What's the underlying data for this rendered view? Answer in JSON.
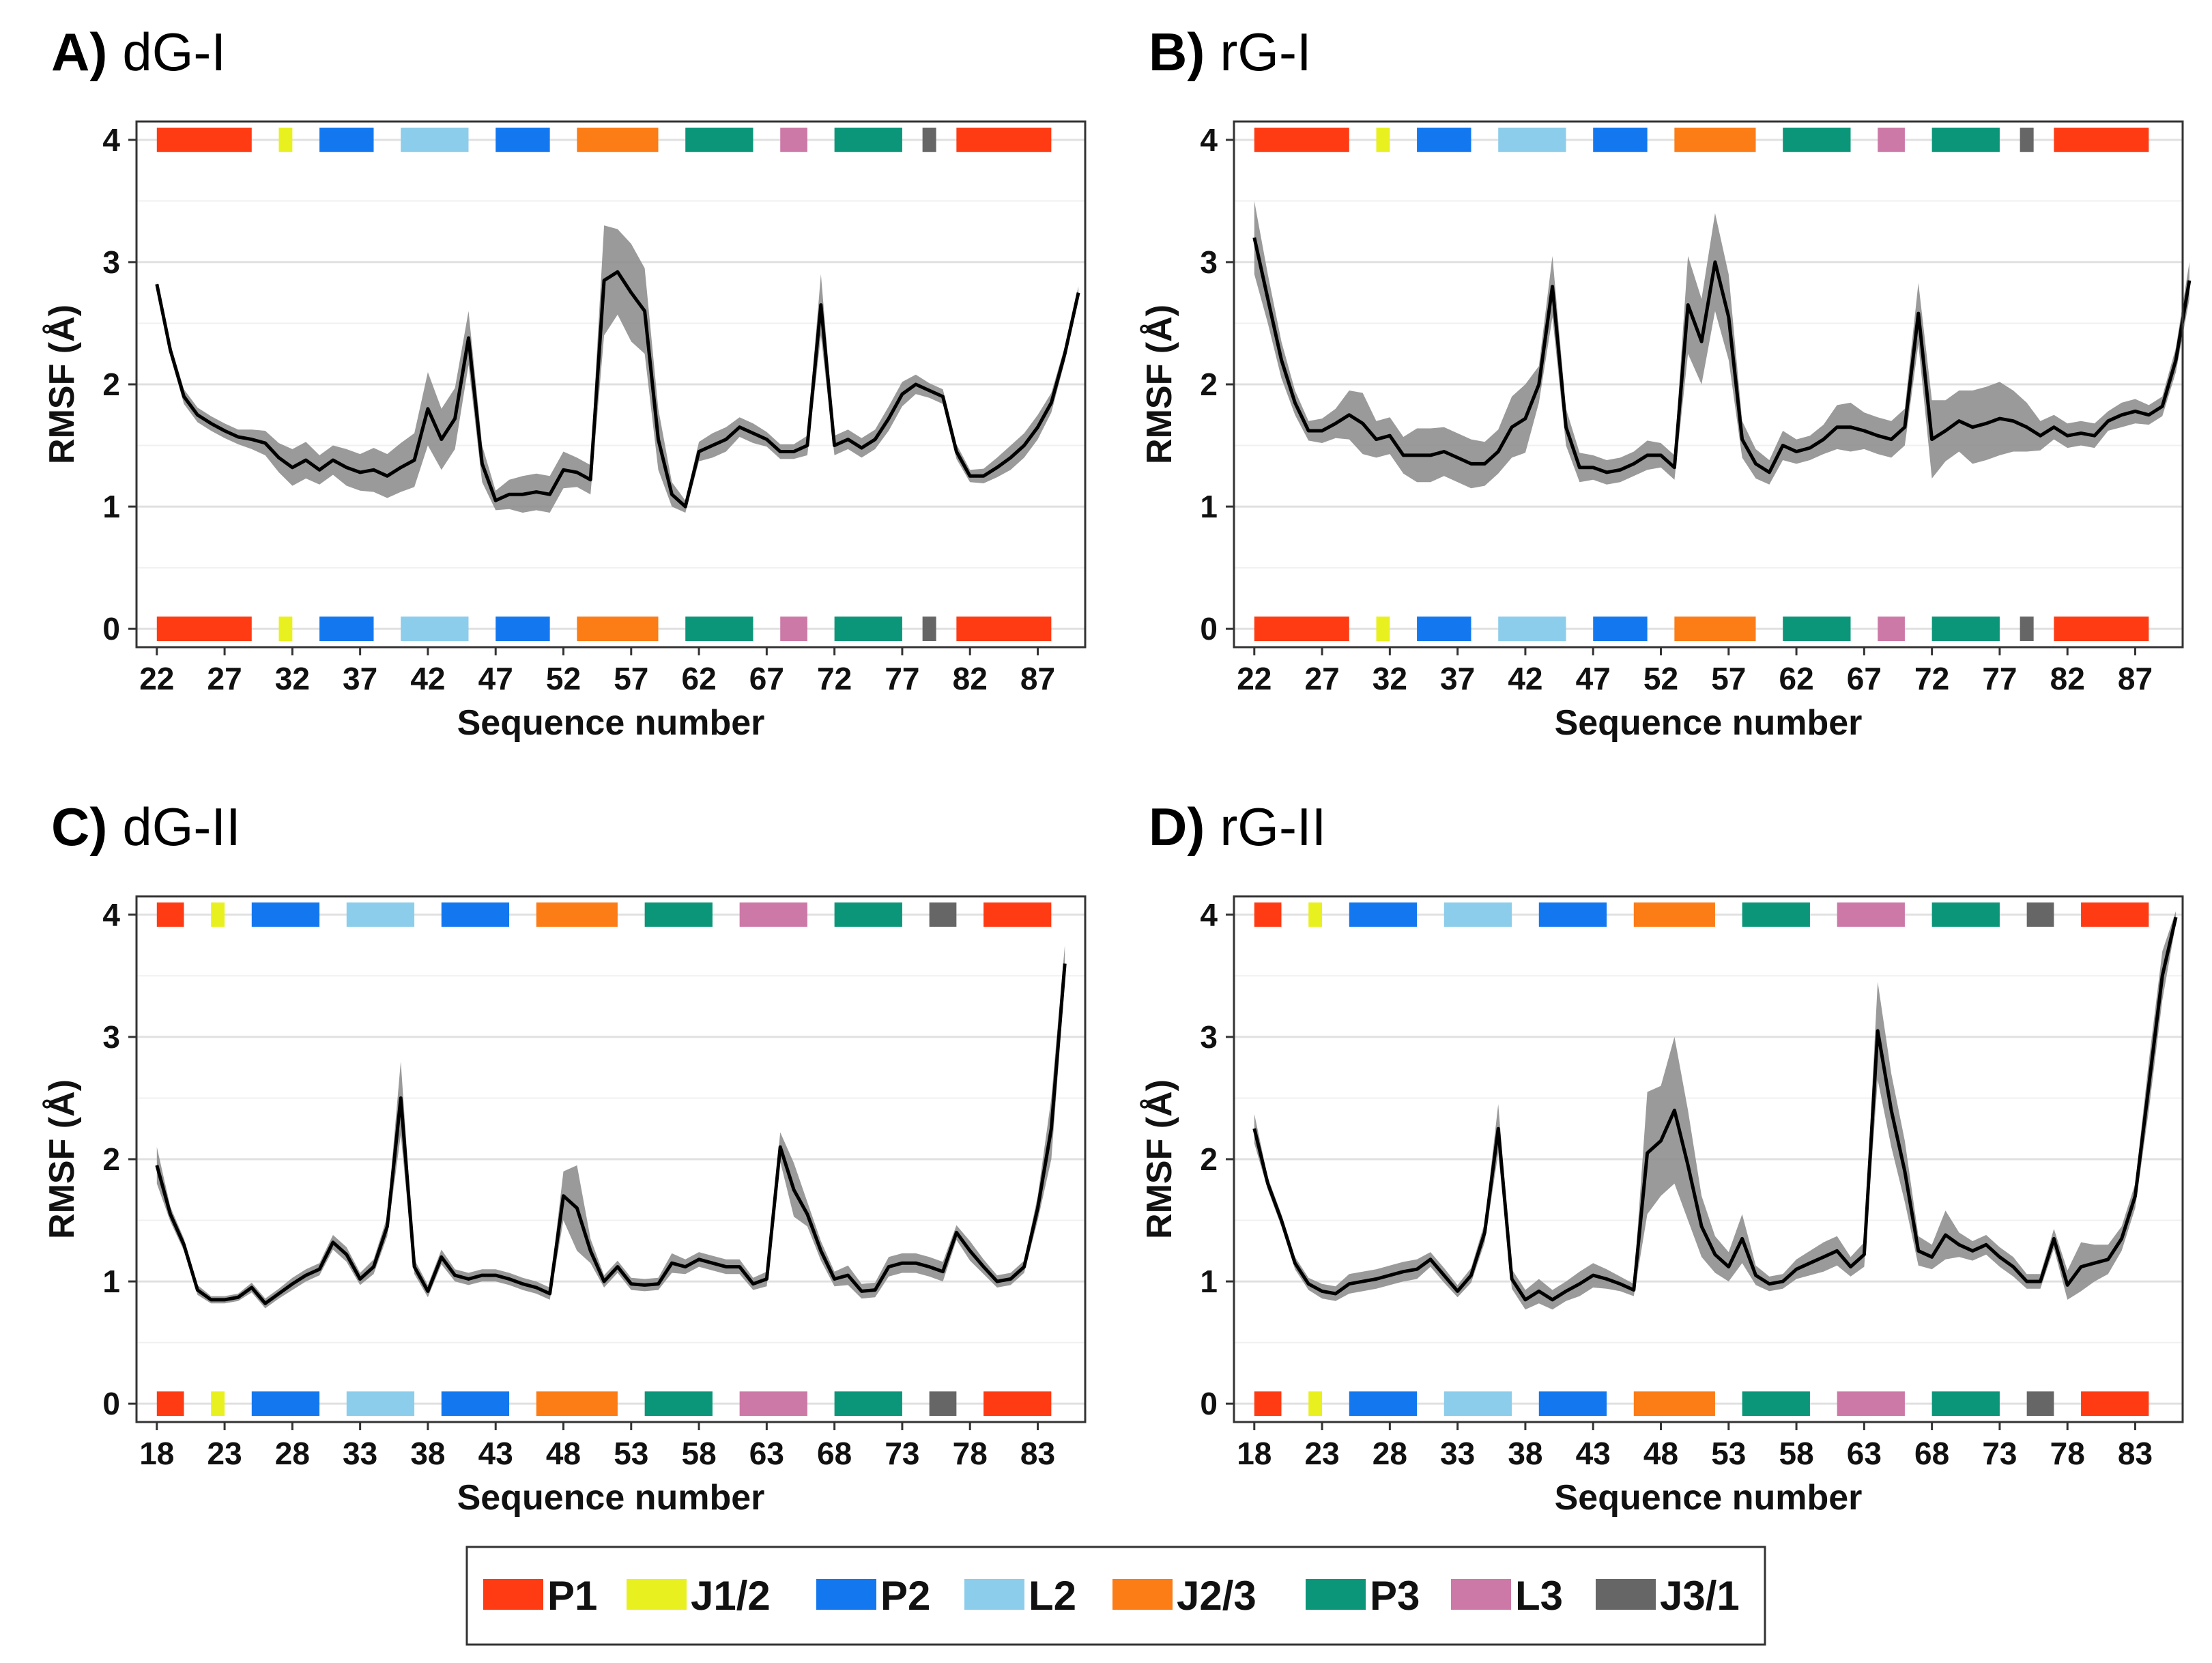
{
  "colors": {
    "P1": "#FF3B14",
    "J1/2": "#E9F020",
    "P2": "#1378F0",
    "L2": "#8CCDEB",
    "J2/3": "#FC7C16",
    "P3": "#0B967A",
    "L3": "#CC79A7",
    "J3/1": "#666666",
    "band": "#888888",
    "line": "#000000"
  },
  "legend": {
    "items": [
      {
        "key": "P1",
        "label": "P1"
      },
      {
        "key": "J1/2",
        "label": "J1/2"
      },
      {
        "key": "P2",
        "label": "P2"
      },
      {
        "key": "L2",
        "label": "L2"
      },
      {
        "key": "J2/3",
        "label": "J2/3"
      },
      {
        "key": "P3",
        "label": "P3"
      },
      {
        "key": "L3",
        "label": "L3"
      },
      {
        "key": "J3/1",
        "label": "J3/1"
      }
    ]
  },
  "chart_data": [
    {
      "id": "A",
      "type": "line",
      "panel_letter": "A)",
      "panel_name": "dG-I",
      "xlabel": "Sequence number",
      "ylabel": "RMSF (Å)",
      "xlim": [
        20.5,
        90.5
      ],
      "ylim": [
        -0.15,
        4.15
      ],
      "xticks": [
        22,
        27,
        32,
        37,
        42,
        47,
        52,
        57,
        62,
        67,
        72,
        77,
        82,
        87
      ],
      "yticks": [
        0,
        1,
        2,
        3,
        4
      ],
      "x_start": 22,
      "series": [
        {
          "name": "RMSF",
          "values": [
            2.82,
            2.28,
            1.9,
            1.75,
            1.68,
            1.62,
            1.57,
            1.55,
            1.52,
            1.4,
            1.32,
            1.38,
            1.3,
            1.38,
            1.32,
            1.28,
            1.3,
            1.25,
            1.32,
            1.38,
            1.8,
            1.55,
            1.72,
            2.38,
            1.35,
            1.05,
            1.1,
            1.1,
            1.12,
            1.1,
            1.3,
            1.28,
            1.22,
            2.85,
            2.92,
            2.75,
            2.6,
            1.55,
            1.1,
            1.0,
            1.45,
            1.5,
            1.55,
            1.65,
            1.6,
            1.55,
            1.45,
            1.45,
            1.5,
            2.65,
            1.5,
            1.55,
            1.48,
            1.55,
            1.72,
            1.92,
            2.0,
            1.95,
            1.9,
            1.45,
            1.25,
            1.25,
            1.32,
            1.4,
            1.5,
            1.65,
            1.85,
            2.25,
            2.75
          ],
          "spread": [
            0.02,
            0.05,
            0.06,
            0.06,
            0.06,
            0.06,
            0.06,
            0.08,
            0.1,
            0.12,
            0.15,
            0.15,
            0.12,
            0.12,
            0.15,
            0.15,
            0.18,
            0.18,
            0.2,
            0.22,
            0.3,
            0.25,
            0.25,
            0.22,
            0.15,
            0.08,
            0.12,
            0.15,
            0.15,
            0.15,
            0.15,
            0.12,
            0.12,
            0.45,
            0.35,
            0.4,
            0.35,
            0.25,
            0.1,
            0.05,
            0.08,
            0.1,
            0.1,
            0.08,
            0.08,
            0.06,
            0.06,
            0.06,
            0.08,
            0.25,
            0.08,
            0.08,
            0.08,
            0.08,
            0.1,
            0.1,
            0.08,
            0.06,
            0.06,
            0.06,
            0.05,
            0.06,
            0.08,
            0.1,
            0.1,
            0.1,
            0.08,
            0.06,
            0.05
          ]
        }
      ],
      "segments": [
        {
          "key": "P1",
          "from": 22,
          "to": 29
        },
        {
          "key": "J1/2",
          "from": 31,
          "to": 32
        },
        {
          "key": "P2",
          "from": 34,
          "to": 38
        },
        {
          "key": "L2",
          "from": 40,
          "to": 45
        },
        {
          "key": "P2",
          "from": 47,
          "to": 51
        },
        {
          "key": "J2/3",
          "from": 53,
          "to": 59
        },
        {
          "key": "P3",
          "from": 61,
          "to": 66
        },
        {
          "key": "L3",
          "from": 68,
          "to": 70
        },
        {
          "key": "P3",
          "from": 72,
          "to": 77
        },
        {
          "key": "J3/1",
          "from": 79,
          "to": 79
        },
        {
          "key": "P1",
          "from": 81,
          "to": 88
        }
      ]
    },
    {
      "id": "B",
      "type": "line",
      "panel_letter": "B)",
      "panel_name": "rG-I",
      "xlabel": "Sequence number",
      "ylabel": "RMSF (Å)",
      "xlim": [
        20.5,
        90.5
      ],
      "ylim": [
        -0.15,
        4.15
      ],
      "xticks": [
        22,
        27,
        32,
        37,
        42,
        47,
        52,
        57,
        62,
        67,
        72,
        77,
        82,
        87
      ],
      "yticks": [
        0,
        1,
        2,
        3,
        4
      ],
      "x_start": 22,
      "series": [
        {
          "name": "RMSF",
          "values": [
            3.2,
            2.7,
            2.2,
            1.85,
            1.62,
            1.62,
            1.68,
            1.75,
            1.68,
            1.55,
            1.58,
            1.42,
            1.42,
            1.42,
            1.45,
            1.4,
            1.35,
            1.35,
            1.45,
            1.65,
            1.72,
            2.0,
            2.8,
            1.65,
            1.32,
            1.32,
            1.28,
            1.3,
            1.35,
            1.42,
            1.42,
            1.32,
            2.65,
            2.35,
            3.0,
            2.55,
            1.55,
            1.35,
            1.28,
            1.5,
            1.45,
            1.48,
            1.55,
            1.65,
            1.65,
            1.62,
            1.58,
            1.55,
            1.65,
            2.58,
            1.55,
            1.62,
            1.7,
            1.65,
            1.68,
            1.72,
            1.7,
            1.65,
            1.58,
            1.65,
            1.58,
            1.6,
            1.58,
            1.7,
            1.75,
            1.78,
            1.75,
            1.82,
            2.2,
            2.85
          ],
          "spread": [
            0.3,
            0.2,
            0.15,
            0.1,
            0.08,
            0.1,
            0.12,
            0.2,
            0.25,
            0.15,
            0.15,
            0.15,
            0.22,
            0.22,
            0.2,
            0.2,
            0.2,
            0.18,
            0.18,
            0.25,
            0.28,
            0.15,
            0.25,
            0.15,
            0.12,
            0.1,
            0.1,
            0.1,
            0.1,
            0.12,
            0.1,
            0.1,
            0.4,
            0.35,
            0.4,
            0.35,
            0.15,
            0.12,
            0.1,
            0.12,
            0.1,
            0.1,
            0.12,
            0.18,
            0.2,
            0.15,
            0.15,
            0.15,
            0.15,
            0.25,
            0.32,
            0.25,
            0.25,
            0.3,
            0.3,
            0.3,
            0.25,
            0.2,
            0.12,
            0.1,
            0.1,
            0.1,
            0.1,
            0.08,
            0.1,
            0.1,
            0.08,
            0.08,
            0.1,
            0.15
          ]
        }
      ],
      "segments": [
        {
          "key": "P1",
          "from": 22,
          "to": 29
        },
        {
          "key": "J1/2",
          "from": 31,
          "to": 32
        },
        {
          "key": "P2",
          "from": 34,
          "to": 38
        },
        {
          "key": "L2",
          "from": 40,
          "to": 45
        },
        {
          "key": "P2",
          "from": 47,
          "to": 51
        },
        {
          "key": "J2/3",
          "from": 53,
          "to": 59
        },
        {
          "key": "P3",
          "from": 61,
          "to": 66
        },
        {
          "key": "L3",
          "from": 68,
          "to": 70
        },
        {
          "key": "P3",
          "from": 72,
          "to": 77
        },
        {
          "key": "J3/1",
          "from": 79,
          "to": 79
        },
        {
          "key": "P1",
          "from": 81,
          "to": 88
        }
      ]
    },
    {
      "id": "C",
      "type": "line",
      "panel_letter": "C)",
      "panel_name": "dG-II",
      "xlabel": "Sequence number",
      "ylabel": "RMSF (Å)",
      "xlim": [
        16.5,
        86.5
      ],
      "ylim": [
        -0.15,
        4.15
      ],
      "xticks": [
        18,
        23,
        28,
        33,
        38,
        43,
        48,
        53,
        58,
        63,
        68,
        73,
        78,
        83
      ],
      "yticks": [
        0,
        1,
        2,
        3,
        4
      ],
      "x_start": 18,
      "series": [
        {
          "name": "RMSF",
          "values": [
            1.95,
            1.55,
            1.3,
            0.93,
            0.85,
            0.85,
            0.87,
            0.95,
            0.82,
            0.9,
            0.98,
            1.05,
            1.1,
            1.32,
            1.22,
            1.02,
            1.12,
            1.45,
            2.5,
            1.12,
            0.92,
            1.2,
            1.05,
            1.02,
            1.05,
            1.05,
            1.02,
            0.98,
            0.95,
            0.9,
            1.7,
            1.6,
            1.25,
            1.0,
            1.12,
            0.98,
            0.97,
            0.98,
            1.15,
            1.12,
            1.18,
            1.15,
            1.12,
            1.12,
            0.98,
            1.02,
            2.1,
            1.75,
            1.55,
            1.25,
            1.02,
            1.05,
            0.92,
            0.93,
            1.12,
            1.15,
            1.15,
            1.12,
            1.08,
            1.4,
            1.25,
            1.12,
            1.0,
            1.02,
            1.12,
            1.6,
            2.25,
            3.6
          ],
          "spread": [
            0.15,
            0.06,
            0.05,
            0.04,
            0.03,
            0.03,
            0.03,
            0.04,
            0.04,
            0.04,
            0.05,
            0.05,
            0.05,
            0.06,
            0.06,
            0.05,
            0.06,
            0.08,
            0.3,
            0.06,
            0.05,
            0.06,
            0.05,
            0.05,
            0.05,
            0.05,
            0.05,
            0.05,
            0.05,
            0.05,
            0.2,
            0.35,
            0.1,
            0.05,
            0.05,
            0.05,
            0.05,
            0.05,
            0.08,
            0.06,
            0.06,
            0.06,
            0.06,
            0.06,
            0.05,
            0.06,
            0.12,
            0.22,
            0.1,
            0.08,
            0.06,
            0.08,
            0.06,
            0.06,
            0.08,
            0.08,
            0.08,
            0.08,
            0.08,
            0.06,
            0.08,
            0.06,
            0.05,
            0.05,
            0.05,
            0.1,
            0.25,
            0.15
          ]
        }
      ],
      "segments": [
        {
          "key": "P1",
          "from": 18,
          "to": 20
        },
        {
          "key": "J1/2",
          "from": 22,
          "to": 23
        },
        {
          "key": "P2",
          "from": 25,
          "to": 30
        },
        {
          "key": "L2",
          "from": 32,
          "to": 37
        },
        {
          "key": "P2",
          "from": 39,
          "to": 44
        },
        {
          "key": "J2/3",
          "from": 46,
          "to": 52
        },
        {
          "key": "P3",
          "from": 54,
          "to": 59
        },
        {
          "key": "L3",
          "from": 61,
          "to": 66
        },
        {
          "key": "P3",
          "from": 68,
          "to": 73
        },
        {
          "key": "J3/1",
          "from": 75,
          "to": 77
        },
        {
          "key": "P1",
          "from": 79,
          "to": 84
        }
      ]
    },
    {
      "id": "D",
      "type": "line",
      "panel_letter": "D)",
      "panel_name": "rG-II",
      "xlabel": "Sequence number",
      "ylabel": "RMSF (Å)",
      "xlim": [
        16.5,
        86.5
      ],
      "ylim": [
        -0.15,
        4.15
      ],
      "xticks": [
        18,
        23,
        28,
        33,
        38,
        43,
        48,
        53,
        58,
        63,
        68,
        73,
        78,
        83
      ],
      "yticks": [
        0,
        1,
        2,
        3,
        4
      ],
      "x_start": 18,
      "series": [
        {
          "name": "RMSF",
          "values": [
            2.25,
            1.8,
            1.5,
            1.15,
            0.98,
            0.92,
            0.9,
            0.98,
            1.0,
            1.02,
            1.05,
            1.08,
            1.1,
            1.18,
            1.05,
            0.92,
            1.05,
            1.4,
            2.25,
            1.02,
            0.85,
            0.92,
            0.85,
            0.92,
            0.98,
            1.05,
            1.02,
            0.98,
            0.93,
            2.05,
            2.15,
            2.4,
            1.95,
            1.45,
            1.22,
            1.12,
            1.35,
            1.05,
            0.98,
            1.0,
            1.1,
            1.15,
            1.2,
            1.25,
            1.12,
            1.22,
            3.05,
            2.4,
            1.9,
            1.25,
            1.2,
            1.38,
            1.3,
            1.25,
            1.3,
            1.2,
            1.12,
            1.0,
            1.0,
            1.35,
            0.97,
            1.12,
            1.15,
            1.18,
            1.35,
            1.7,
            2.6,
            3.5,
            3.98
          ],
          "spread": [
            0.12,
            0.05,
            0.05,
            0.05,
            0.05,
            0.06,
            0.06,
            0.08,
            0.08,
            0.08,
            0.08,
            0.08,
            0.08,
            0.06,
            0.06,
            0.05,
            0.06,
            0.08,
            0.2,
            0.08,
            0.08,
            0.1,
            0.08,
            0.08,
            0.1,
            0.1,
            0.08,
            0.06,
            0.05,
            0.5,
            0.45,
            0.6,
            0.45,
            0.25,
            0.15,
            0.12,
            0.2,
            0.08,
            0.06,
            0.06,
            0.08,
            0.1,
            0.12,
            0.12,
            0.08,
            0.1,
            0.4,
            0.3,
            0.25,
            0.12,
            0.1,
            0.2,
            0.1,
            0.08,
            0.08,
            0.08,
            0.08,
            0.06,
            0.06,
            0.08,
            0.12,
            0.2,
            0.15,
            0.12,
            0.1,
            0.1,
            0.2,
            0.2,
            0.05
          ]
        }
      ],
      "segments": [
        {
          "key": "P1",
          "from": 18,
          "to": 20
        },
        {
          "key": "J1/2",
          "from": 22,
          "to": 23
        },
        {
          "key": "P2",
          "from": 25,
          "to": 30
        },
        {
          "key": "L2",
          "from": 32,
          "to": 37
        },
        {
          "key": "P2",
          "from": 39,
          "to": 44
        },
        {
          "key": "J2/3",
          "from": 46,
          "to": 52
        },
        {
          "key": "P3",
          "from": 54,
          "to": 59
        },
        {
          "key": "L3",
          "from": 61,
          "to": 66
        },
        {
          "key": "P3",
          "from": 68,
          "to": 73
        },
        {
          "key": "J3/1",
          "from": 75,
          "to": 77
        },
        {
          "key": "P1",
          "from": 79,
          "to": 84
        }
      ]
    }
  ]
}
